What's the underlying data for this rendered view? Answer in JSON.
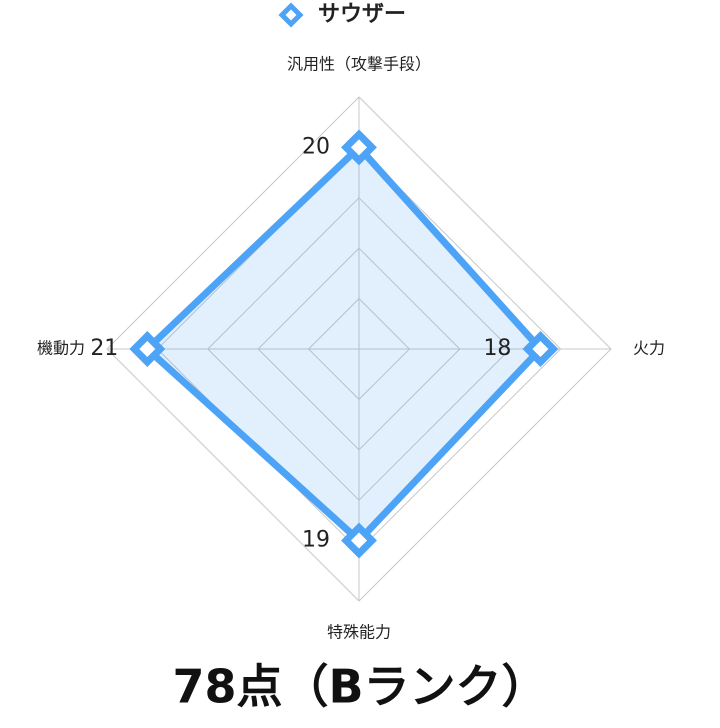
{
  "chart_data": {
    "type": "radar",
    "categories": [
      "汎用性（攻撃手段）",
      "火力",
      "特殊能力",
      "機動力"
    ],
    "series": [
      {
        "name": "サウザー",
        "color": "#4da3f5",
        "values": [
          20,
          18,
          19,
          21
        ]
      }
    ],
    "rlim": [
      0,
      25
    ],
    "rticks": [
      5,
      10,
      15,
      20,
      25
    ],
    "grid": true,
    "legend": "top",
    "caption": "78点（Bランク）"
  }
}
